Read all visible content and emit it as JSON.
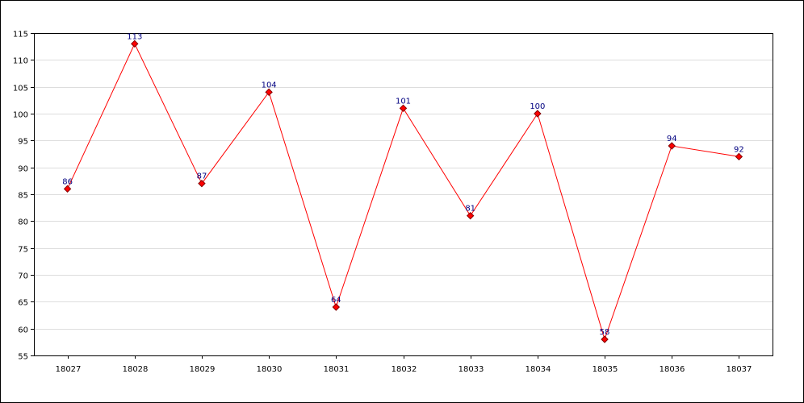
{
  "chart_data": {
    "type": "line",
    "title": "",
    "xlabel": "",
    "ylabel": "",
    "categories": [
      "18027",
      "18028",
      "18029",
      "18030",
      "18031",
      "18032",
      "18033",
      "18034",
      "18035",
      "18036",
      "18037"
    ],
    "series": [
      {
        "values": [
          86,
          113,
          87,
          104,
          64,
          101,
          81,
          100,
          58,
          94,
          92
        ]
      }
    ],
    "ylim": [
      55,
      115
    ],
    "yticks": [
      55,
      60,
      65,
      70,
      75,
      80,
      85,
      90,
      95,
      100,
      105,
      110,
      115
    ],
    "grid": true,
    "legend": "none",
    "data_labels": true,
    "colors": {
      "line": "#ff0000",
      "marker_fill": "#ff0000",
      "marker_stroke": "#800000",
      "data_label": "#000080",
      "grid": "#dddddd",
      "axis": "#000000"
    }
  }
}
